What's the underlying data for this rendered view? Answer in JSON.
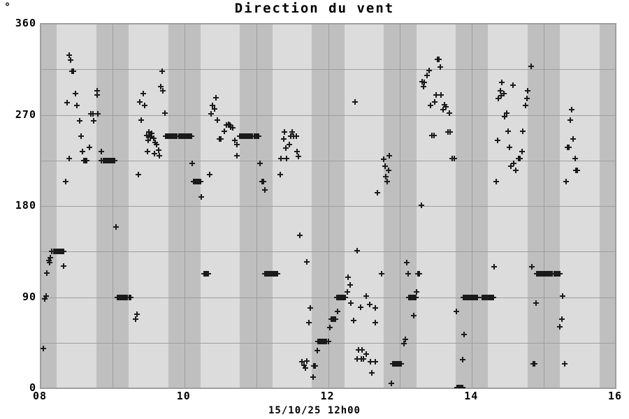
{
  "title": "Direction du vent",
  "y_unit": "°",
  "x_caption": "15/10/25 12h00",
  "colors": {
    "background": "#ffffff",
    "band_light": "#dcdcdc",
    "band_dark": "#bfbfbf",
    "gridline": "#9e9e9e",
    "marker": "#1a1a1a",
    "text": "#000000"
  },
  "chart_data": {
    "type": "scatter",
    "marker": "+",
    "title": "Direction du vent",
    "xlabel": "15/10/25 12h00",
    "ylabel": "°",
    "xlim": [
      8,
      16
    ],
    "ylim": [
      0,
      360
    ],
    "x_grid_step_hours": 1,
    "y_grid_step_deg": 45,
    "band_halfwidth_hours": 0.225,
    "legend": "none",
    "x_ticks": [
      {
        "value": 8,
        "label": "08"
      },
      {
        "value": 10,
        "label": "10"
      },
      {
        "value": 12,
        "label": "12"
      },
      {
        "value": 14,
        "label": "14"
      },
      {
        "value": 16,
        "label": "16"
      }
    ],
    "y_ticks": [
      {
        "value": 0,
        "label": "0"
      },
      {
        "value": 90,
        "label": "90"
      },
      {
        "value": 180,
        "label": "180"
      },
      {
        "value": 270,
        "label": "270"
      },
      {
        "value": 360,
        "label": "360"
      }
    ],
    "points": [
      [
        8.04,
        39
      ],
      [
        8.06,
        88
      ],
      [
        8.08,
        91
      ],
      [
        8.09,
        114
      ],
      [
        8.12,
        126
      ],
      [
        8.13,
        124
      ],
      [
        8.14,
        129
      ],
      [
        8.32,
        121
      ],
      [
        8.35,
        204
      ],
      [
        8.37,
        282
      ],
      [
        8.4,
        329
      ],
      [
        8.4,
        227
      ],
      [
        8.42,
        324
      ],
      [
        8.44,
        313
      ],
      [
        8.46,
        313
      ],
      [
        8.49,
        291
      ],
      [
        8.51,
        279
      ],
      [
        8.54,
        264
      ],
      [
        8.56,
        249
      ],
      [
        8.58,
        234
      ],
      [
        8.68,
        238
      ],
      [
        8.7,
        271
      ],
      [
        8.73,
        271
      ],
      [
        8.74,
        264
      ],
      [
        8.79,
        294
      ],
      [
        8.79,
        290
      ],
      [
        8.8,
        271
      ],
      [
        8.85,
        234
      ],
      [
        9.05,
        159
      ],
      [
        9.32,
        68
      ],
      [
        9.34,
        73
      ],
      [
        9.36,
        211
      ],
      [
        9.38,
        283
      ],
      [
        9.4,
        265
      ],
      [
        9.43,
        291
      ],
      [
        9.45,
        279
      ],
      [
        9.48,
        250
      ],
      [
        9.49,
        234
      ],
      [
        9.5,
        245
      ],
      [
        9.51,
        253
      ],
      [
        9.53,
        248
      ],
      [
        9.55,
        252
      ],
      [
        9.57,
        247
      ],
      [
        9.58,
        232
      ],
      [
        9.59,
        243
      ],
      [
        9.61,
        241
      ],
      [
        9.64,
        235
      ],
      [
        9.65,
        230
      ],
      [
        9.67,
        298
      ],
      [
        9.69,
        313
      ],
      [
        9.7,
        294
      ],
      [
        9.73,
        272
      ],
      [
        10.11,
        222
      ],
      [
        10.24,
        189
      ],
      [
        10.35,
        211
      ],
      [
        10.37,
        271
      ],
      [
        10.39,
        279
      ],
      [
        10.42,
        276
      ],
      [
        10.44,
        287
      ],
      [
        10.46,
        265
      ],
      [
        10.49,
        246
      ],
      [
        10.51,
        246
      ],
      [
        10.56,
        254
      ],
      [
        10.59,
        260
      ],
      [
        10.61,
        261
      ],
      [
        10.63,
        260
      ],
      [
        10.64,
        258
      ],
      [
        10.67,
        257
      ],
      [
        10.7,
        245
      ],
      [
        10.73,
        241
      ],
      [
        10.73,
        230
      ],
      [
        11.05,
        222
      ],
      [
        11.08,
        204
      ],
      [
        11.1,
        204
      ],
      [
        11.12,
        196
      ],
      [
        11.33,
        211
      ],
      [
        11.34,
        227
      ],
      [
        11.38,
        246
      ],
      [
        11.39,
        253
      ],
      [
        11.41,
        237
      ],
      [
        11.42,
        227
      ],
      [
        11.46,
        241
      ],
      [
        11.48,
        249
      ],
      [
        11.5,
        253
      ],
      [
        11.52,
        249
      ],
      [
        11.56,
        249
      ],
      [
        11.57,
        234
      ],
      [
        11.59,
        229
      ],
      [
        11.61,
        151
      ],
      [
        11.64,
        26
      ],
      [
        11.66,
        23
      ],
      [
        11.68,
        20
      ],
      [
        11.7,
        125
      ],
      [
        11.7,
        27
      ],
      [
        11.73,
        65
      ],
      [
        11.75,
        79
      ],
      [
        11.79,
        11
      ],
      [
        11.8,
        22
      ],
      [
        11.82,
        22
      ],
      [
        11.85,
        37
      ],
      [
        12.02,
        60
      ],
      [
        12.13,
        76
      ],
      [
        12.27,
        95
      ],
      [
        12.28,
        110
      ],
      [
        12.31,
        102
      ],
      [
        12.32,
        84
      ],
      [
        12.35,
        67
      ],
      [
        12.37,
        283
      ],
      [
        12.4,
        136
      ],
      [
        12.4,
        29
      ],
      [
        12.42,
        38
      ],
      [
        12.45,
        80
      ],
      [
        12.46,
        29
      ],
      [
        12.47,
        38
      ],
      [
        12.49,
        29
      ],
      [
        12.53,
        91
      ],
      [
        12.53,
        34
      ],
      [
        12.58,
        83
      ],
      [
        12.59,
        26
      ],
      [
        12.61,
        15
      ],
      [
        12.66,
        79
      ],
      [
        12.66,
        65
      ],
      [
        12.66,
        26
      ],
      [
        12.69,
        193
      ],
      [
        12.74,
        113
      ],
      [
        12.77,
        226
      ],
      [
        12.79,
        219
      ],
      [
        12.8,
        209
      ],
      [
        12.82,
        204
      ],
      [
        12.84,
        215
      ],
      [
        12.85,
        230
      ],
      [
        12.88,
        5
      ],
      [
        13.05,
        44
      ],
      [
        13.07,
        48
      ],
      [
        13.09,
        124
      ],
      [
        13.11,
        113
      ],
      [
        13.19,
        72
      ],
      [
        13.23,
        95
      ],
      [
        13.25,
        113
      ],
      [
        13.27,
        113
      ],
      [
        13.3,
        181
      ],
      [
        13.31,
        303
      ],
      [
        13.33,
        298
      ],
      [
        13.34,
        302
      ],
      [
        13.38,
        309
      ],
      [
        13.4,
        314
      ],
      [
        13.42,
        279
      ],
      [
        13.44,
        250
      ],
      [
        13.47,
        250
      ],
      [
        13.48,
        283
      ],
      [
        13.5,
        290
      ],
      [
        13.52,
        325
      ],
      [
        13.54,
        325
      ],
      [
        13.56,
        317
      ],
      [
        13.57,
        290
      ],
      [
        13.6,
        275
      ],
      [
        13.62,
        280
      ],
      [
        13.64,
        278
      ],
      [
        13.67,
        253
      ],
      [
        13.69,
        272
      ],
      [
        13.7,
        253
      ],
      [
        13.73,
        227
      ],
      [
        13.75,
        227
      ],
      [
        13.78,
        76
      ],
      [
        13.87,
        28
      ],
      [
        13.89,
        53
      ],
      [
        14.31,
        120
      ],
      [
        14.34,
        204
      ],
      [
        14.36,
        245
      ],
      [
        14.37,
        286
      ],
      [
        14.4,
        294
      ],
      [
        14.41,
        289
      ],
      [
        14.42,
        302
      ],
      [
        14.44,
        291
      ],
      [
        14.45,
        268
      ],
      [
        14.48,
        272
      ],
      [
        14.5,
        254
      ],
      [
        14.52,
        238
      ],
      [
        14.54,
        219
      ],
      [
        14.57,
        299
      ],
      [
        14.58,
        222
      ],
      [
        14.61,
        215
      ],
      [
        14.65,
        227
      ],
      [
        14.67,
        227
      ],
      [
        14.7,
        234
      ],
      [
        14.71,
        254
      ],
      [
        14.75,
        279
      ],
      [
        14.77,
        286
      ],
      [
        14.78,
        294
      ],
      [
        14.82,
        318
      ],
      [
        14.83,
        120
      ],
      [
        14.85,
        24
      ],
      [
        14.87,
        24
      ],
      [
        14.89,
        84
      ],
      [
        15.22,
        61
      ],
      [
        15.25,
        68
      ],
      [
        15.26,
        91
      ],
      [
        15.29,
        24
      ],
      [
        15.31,
        204
      ],
      [
        15.33,
        238
      ],
      [
        15.35,
        238
      ],
      [
        15.37,
        265
      ],
      [
        15.39,
        275
      ],
      [
        15.41,
        246
      ],
      [
        15.44,
        227
      ],
      [
        15.45,
        215
      ],
      [
        15.47,
        215
      ]
    ],
    "runs": [
      [
        8.16,
        8.32,
        135
      ],
      [
        8.6,
        8.65,
        225
      ],
      [
        8.85,
        9.04,
        225
      ],
      [
        9.07,
        9.26,
        90
      ],
      [
        9.74,
        10.1,
        249
      ],
      [
        10.13,
        10.23,
        204
      ],
      [
        10.27,
        10.33,
        113
      ],
      [
        10.77,
        11.04,
        249
      ],
      [
        11.12,
        11.31,
        113
      ],
      [
        11.86,
        12.0,
        46
      ],
      [
        12.04,
        12.11,
        68
      ],
      [
        12.12,
        12.25,
        90
      ],
      [
        12.9,
        13.03,
        24
      ],
      [
        13.12,
        13.22,
        90
      ],
      [
        13.79,
        13.88,
        1
      ],
      [
        13.88,
        14.08,
        90
      ],
      [
        14.14,
        14.31,
        90
      ],
      [
        14.9,
        15.22,
        113
      ]
    ]
  }
}
